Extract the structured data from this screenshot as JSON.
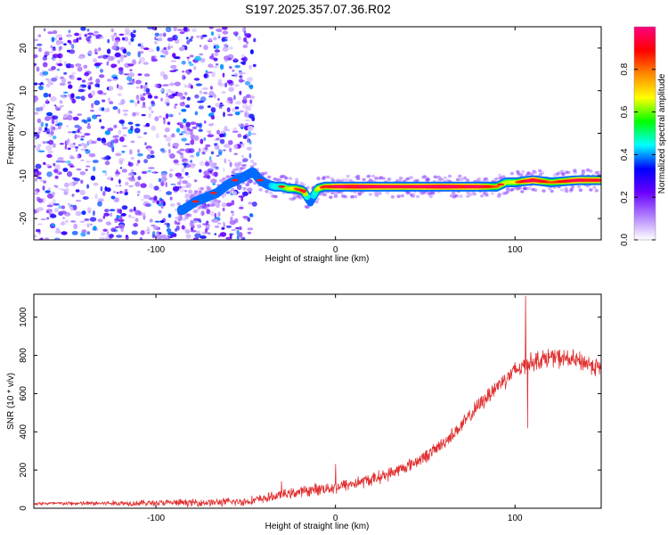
{
  "title": "S197.2025.357.07.36.R02",
  "chart_data": [
    {
      "type": "heatmap",
      "title": "S197.2025.357.07.36.R02",
      "xlabel": "Height of straight line (km)",
      "ylabel": "Frequency (Hz)",
      "xlim": [
        -168,
        148
      ],
      "ylim": [
        -25,
        25
      ],
      "xticks": [
        -100,
        0,
        100
      ],
      "yticks": [
        -20,
        -10,
        0,
        10,
        20
      ],
      "colorbar": {
        "label": "Normalized spectral amplitude",
        "range": [
          0,
          1
        ],
        "ticks": [
          0,
          0.2,
          0.4,
          0.6,
          0.8
        ],
        "colors": [
          "#ffffff",
          "#b080ff",
          "#6a00ff",
          "#0000ff",
          "#00ffff",
          "#00ff00",
          "#ffff00",
          "#ff8800",
          "#ff0000",
          "#ff0080"
        ]
      },
      "noise_region_x": [
        -168,
        -45
      ],
      "ridge": {
        "x": [
          -85,
          -78,
          -72,
          -66,
          -60,
          -55,
          -50,
          -46,
          -42,
          -38,
          -34,
          -30,
          -26,
          -22,
          -18,
          -14,
          -10,
          -6,
          -2,
          0,
          10,
          20,
          40,
          60,
          80,
          90,
          95,
          100,
          110,
          120,
          135,
          148
        ],
        "freq": [
          -18,
          -16,
          -15,
          -14,
          -12,
          -11,
          -10,
          -9,
          -11,
          -12,
          -12.5,
          -12.5,
          -13,
          -13,
          -13.5,
          -16,
          -13,
          -12.5,
          -12.5,
          -12.5,
          -12.5,
          -12.5,
          -12.5,
          -12.5,
          -12.5,
          -12.5,
          -11.5,
          -11.5,
          -11,
          -11.5,
          -11,
          -11
        ],
        "amplitude": [
          0.4,
          0.45,
          0.4,
          0.35,
          0.3,
          0.3,
          0.35,
          0.45,
          0.5,
          0.55,
          0.6,
          0.65,
          0.7,
          0.75,
          0.8,
          0.5,
          0.7,
          0.8,
          0.85,
          0.9,
          0.95,
          0.92,
          0.88,
          0.95,
          0.9,
          0.75,
          0.7,
          0.72,
          0.95,
          0.75,
          0.9,
          0.85
        ]
      }
    },
    {
      "type": "line",
      "xlabel": "Height of straight line (km)",
      "ylabel": "SNR (10 * v/v)",
      "xlim": [
        -168,
        148
      ],
      "ylim": [
        0,
        1120
      ],
      "xticks": [
        -100,
        0,
        100
      ],
      "yticks": [
        0,
        200,
        400,
        600,
        800,
        1000
      ],
      "color": "#e03030",
      "trend": {
        "x": [
          -168,
          -140,
          -100,
          -70,
          -50,
          -40,
          -30,
          -20,
          -10,
          0,
          10,
          20,
          30,
          40,
          50,
          60,
          70,
          80,
          90,
          100,
          110,
          120,
          130,
          140,
          148
        ],
        "y": [
          25,
          25,
          28,
          30,
          35,
          50,
          70,
          85,
          100,
          110,
          130,
          150,
          180,
          220,
          270,
          340,
          430,
          540,
          640,
          720,
          770,
          790,
          780,
          760,
          730
        ]
      },
      "spikes": [
        {
          "x": 0,
          "y": 230
        },
        {
          "x": -30,
          "y": 140
        },
        {
          "x": 106,
          "y": 1110
        },
        {
          "x": 107,
          "y": 420
        }
      ],
      "noise_amplitude": [
        {
          "x": -168,
          "amp": 10
        },
        {
          "x": -30,
          "amp": 30
        },
        {
          "x": 0,
          "amp": 40
        },
        {
          "x": 60,
          "amp": 40
        },
        {
          "x": 100,
          "amp": 60
        },
        {
          "x": 148,
          "amp": 60
        }
      ]
    }
  ]
}
